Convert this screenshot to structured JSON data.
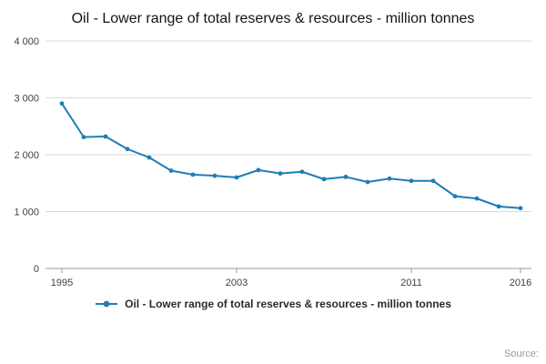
{
  "title": "Oil - Lower range of total reserves & resources - million tonnes",
  "legend": {
    "label": "Oil - Lower range of total reserves & resources - million tonnes"
  },
  "source": {
    "label": "Source:"
  },
  "chart_data": {
    "type": "line",
    "title": "Oil - Lower range of total reserves & resources - million tonnes",
    "xlabel": "",
    "ylabel": "",
    "x": [
      1995,
      1996,
      1997,
      1998,
      1999,
      2000,
      2001,
      2002,
      2003,
      2004,
      2005,
      2006,
      2007,
      2008,
      2009,
      2010,
      2011,
      2012,
      2013,
      2014,
      2015,
      2016
    ],
    "values": [
      2900,
      2310,
      2320,
      2100,
      1950,
      1720,
      1650,
      1630,
      1600,
      1730,
      1670,
      1700,
      1570,
      1610,
      1520,
      1580,
      1540,
      1540,
      1270,
      1230,
      1090,
      1060
    ],
    "ylim": [
      0,
      4000
    ],
    "yticks": [
      {
        "value": 0,
        "label": "0"
      },
      {
        "value": 1000,
        "label": "1 000"
      },
      {
        "value": 2000,
        "label": "2 000"
      },
      {
        "value": 3000,
        "label": "3 000"
      },
      {
        "value": 4000,
        "label": "4 000"
      }
    ],
    "xticks": [
      {
        "value": 1995,
        "label": "1995"
      },
      {
        "value": 2003,
        "label": "2003"
      },
      {
        "value": 2011,
        "label": "2011"
      },
      {
        "value": 2016,
        "label": "2016"
      }
    ],
    "grid": "horizontal",
    "legend_position": "bottom",
    "color": "#1f7eb4",
    "grid_color": "#d9d9d9",
    "axis_color": "#999999",
    "tick_color": "#414042"
  }
}
